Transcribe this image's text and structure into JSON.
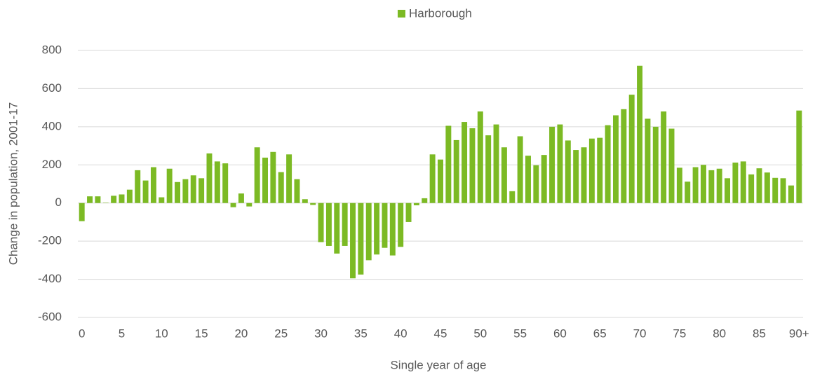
{
  "chart_data": {
    "type": "bar",
    "x_label": "Single year of age",
    "y_label": "Change in population, 2001-17",
    "categories": [
      "0",
      null,
      null,
      null,
      null,
      "5",
      null,
      null,
      null,
      null,
      "10",
      null,
      null,
      null,
      null,
      "15",
      null,
      null,
      null,
      null,
      "20",
      null,
      null,
      null,
      null,
      "25",
      null,
      null,
      null,
      null,
      "30",
      null,
      null,
      null,
      null,
      "35",
      null,
      null,
      null,
      null,
      "40",
      null,
      null,
      null,
      null,
      "45",
      null,
      null,
      null,
      null,
      "50",
      null,
      null,
      null,
      null,
      "55",
      null,
      null,
      null,
      null,
      "60",
      null,
      null,
      null,
      null,
      "65",
      null,
      null,
      null,
      null,
      "70",
      null,
      null,
      null,
      null,
      "75",
      null,
      null,
      null,
      null,
      "80",
      null,
      null,
      null,
      null,
      "85",
      null,
      null,
      null,
      null,
      "90+"
    ],
    "series": [
      {
        "name": "Harborough",
        "color": "#7cba24",
        "values": [
          -95,
          35,
          35,
          2,
          38,
          45,
          70,
          172,
          118,
          188,
          30,
          180,
          110,
          125,
          145,
          130,
          260,
          218,
          208,
          -22,
          50,
          -18,
          292,
          238,
          268,
          162,
          255,
          125,
          20,
          -10,
          -205,
          -225,
          -265,
          -225,
          -395,
          -375,
          -300,
          -270,
          -235,
          -275,
          -230,
          -100,
          -12,
          25,
          255,
          228,
          405,
          330,
          425,
          392,
          480,
          355,
          412,
          292,
          62,
          350,
          248,
          198,
          252,
          400,
          412,
          328,
          278,
          292,
          338,
          342,
          408,
          460,
          492,
          568,
          720,
          442,
          400,
          480,
          390,
          185,
          112,
          188,
          200,
          172,
          180,
          130,
          212,
          218,
          150,
          182,
          160,
          132,
          130,
          92,
          485
        ]
      }
    ],
    "ylim": [
      -600,
      800
    ],
    "yticks": [
      -600,
      -400,
      -200,
      0,
      200,
      400,
      600,
      800
    ],
    "grid": true,
    "legend": "top"
  }
}
